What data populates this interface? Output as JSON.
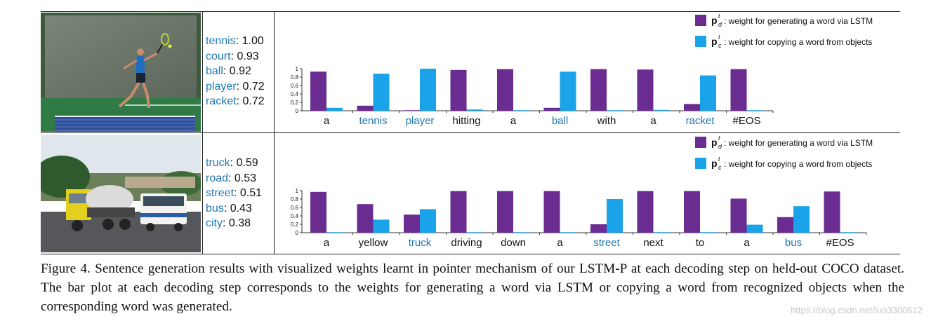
{
  "colors": {
    "lstm": "#6a2c91",
    "copy": "#1aa3e8",
    "object_word": "#1f77b4",
    "plain_word": "#111111"
  },
  "legend": {
    "lstm_symbol": "p",
    "lstm_sub": "d",
    "copy_symbol": "p",
    "copy_sub": "c",
    "sup": "t",
    "lstm_label": ": weight for generating a word via LSTM",
    "copy_label": ": weight for copying a word from objects"
  },
  "rows": [
    {
      "image_alt": "tennis player hitting a ball",
      "objects": [
        {
          "word": "tennis",
          "score": ": 1.00"
        },
        {
          "word": "court",
          "score": ": 0.93"
        },
        {
          "word": "ball",
          "score": ": 0.92"
        },
        {
          "word": "player",
          "score": ": 0.72"
        },
        {
          "word": "racket",
          "score": ": 0.72"
        }
      ],
      "chart_data": {
        "type": "bar",
        "categories": [
          "a",
          "tennis",
          "player",
          "hitting",
          "a",
          "ball",
          "with",
          "a",
          "racket",
          "#EOS"
        ],
        "copied": [
          false,
          true,
          true,
          false,
          false,
          true,
          false,
          false,
          true,
          false
        ],
        "series": [
          {
            "name": "weight for generating a word via LSTM",
            "values": [
              0.93,
              0.12,
              0.0,
              0.97,
              0.99,
              0.07,
              0.99,
              0.98,
              0.16,
              0.99
            ]
          },
          {
            "name": "weight for copying a word from objects",
            "values": [
              0.07,
              0.88,
              1.0,
              0.03,
              0.01,
              0.93,
              0.01,
              0.02,
              0.84,
              0.01
            ]
          }
        ],
        "yticks": [
          "0",
          "0.2",
          "0.4",
          "0.6",
          "0.8",
          "1"
        ],
        "ylim": [
          0,
          1
        ]
      }
    },
    {
      "image_alt": "cement truck and bus on a street",
      "objects": [
        {
          "word": "truck",
          "score": ": 0.59"
        },
        {
          "word": "road",
          "score": ": 0.53"
        },
        {
          "word": "street",
          "score": ": 0.51"
        },
        {
          "word": "bus",
          "score": ": 0.43"
        },
        {
          "word": "city",
          "score": ": 0.38"
        }
      ],
      "chart_data": {
        "type": "bar",
        "categories": [
          "a",
          "yellow",
          "truck",
          "driving",
          "down",
          "a",
          "street",
          "next",
          "to",
          "a",
          "bus",
          "#EOS"
        ],
        "copied": [
          false,
          false,
          true,
          false,
          false,
          false,
          true,
          false,
          false,
          false,
          true,
          false
        ],
        "series": [
          {
            "name": "weight for generating a word via LSTM",
            "values": [
              0.97,
              0.68,
              0.43,
              0.99,
              0.99,
              0.99,
              0.2,
              0.99,
              0.99,
              0.81,
              0.37,
              0.98
            ]
          },
          {
            "name": "weight for copying a word from objects",
            "values": [
              0.01,
              0.31,
              0.56,
              0.0,
              0.0,
              0.0,
              0.8,
              0.0,
              0.0,
              0.19,
              0.63,
              0.0
            ]
          }
        ],
        "yticks": [
          "0",
          "0.2",
          "0.4",
          "0.6",
          "0.8",
          "1"
        ],
        "ylim": [
          0,
          1
        ]
      }
    }
  ],
  "caption": "Figure 4. Sentence generation results with visualized weights learnt in pointer mechanism of our LSTM-P at each decoding step on held-out COCO dataset. The bar plot at each decoding step corresponds to the weights for generating a word via LSTM or copying a word from recognized objects when the corresponding word was generated.",
  "watermark": "https://blog.csdn.net/luo3300612"
}
